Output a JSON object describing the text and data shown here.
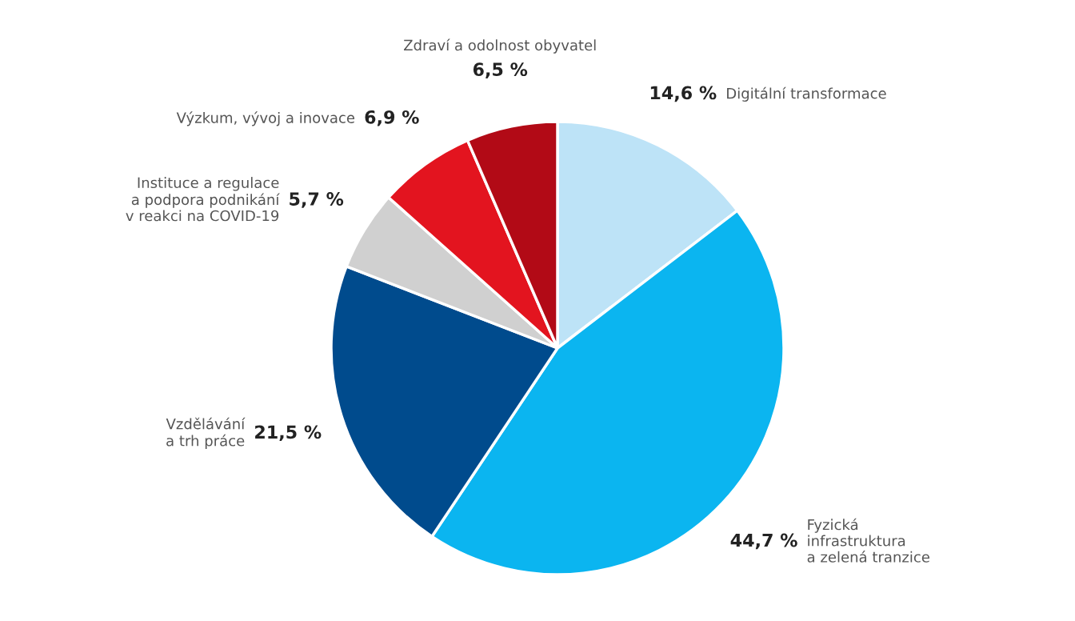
{
  "chart_data": {
    "type": "pie",
    "categories": [
      "Digitální transformace",
      "Fyzická\ninfrastruktura\na zelená tranzice",
      "Vzdělávání\na trh práce",
      "Instituce a regulace\na podpora podnikání\nv reakci na COVID-19",
      "Výzkum, vývoj a inovace",
      "Zdraví a odolnost obyvatel"
    ],
    "values": [
      14.6,
      44.7,
      21.5,
      5.7,
      6.9,
      6.5
    ],
    "value_labels": [
      "14,6 %",
      "44,7 %",
      "21,5 %",
      "5,7 %",
      "6,9 %",
      "6,5 %"
    ],
    "colors": [
      "#bde3f7",
      "#0bb5f0",
      "#004b8d",
      "#d0d0d0",
      "#e3141f",
      "#b20a16"
    ]
  }
}
